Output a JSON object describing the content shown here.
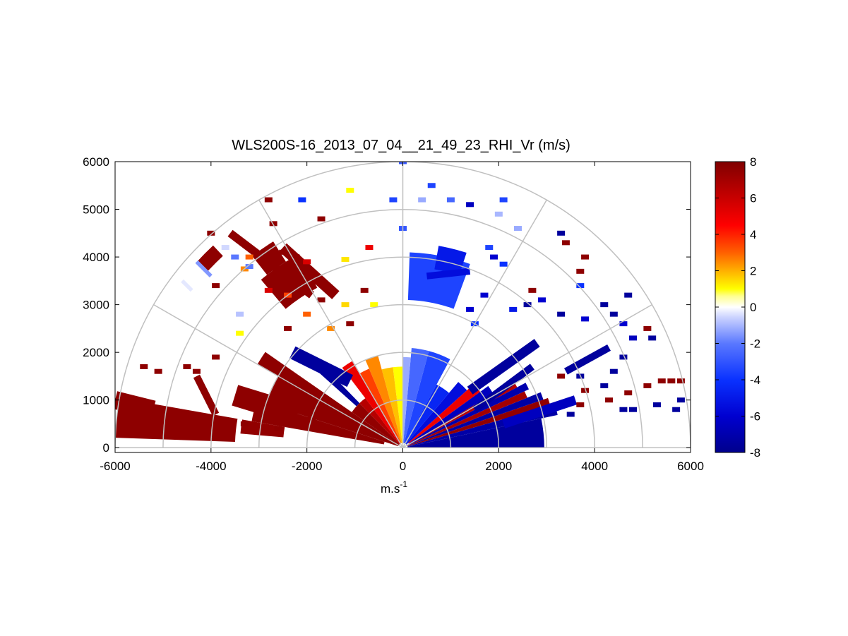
{
  "chart_data": {
    "type": "heatmap",
    "title": "WLS200S-16_2013_07_04__21_49_23_RHI_Vr (m/s)",
    "xlabel_base": "m.s",
    "xlabel_sup": "-1",
    "ylabel": "",
    "xlim": [
      -6000,
      6000
    ],
    "ylim": [
      -100,
      6000
    ],
    "x_ticks": [
      "-6000",
      "-4000",
      "-2000",
      "0",
      "2000",
      "4000",
      "6000"
    ],
    "y_ticks": [
      "0",
      "1000",
      "2000",
      "3000",
      "4000",
      "5000",
      "6000"
    ],
    "grid": true,
    "polar_grid": {
      "range_rings": [
        1000,
        2000,
        3000,
        4000,
        5000,
        6000
      ],
      "spokes_deg": [
        0,
        30,
        60,
        90,
        120,
        150,
        180
      ]
    },
    "colorbar": {
      "min": -8,
      "max": 8,
      "ticks": [
        "8",
        "6",
        "4",
        "2",
        "0",
        "-2",
        "-4",
        "-6",
        "-8"
      ],
      "colormap_stops": [
        {
          "v": -8,
          "color": "#00008c"
        },
        {
          "v": -6,
          "color": "#0000d0"
        },
        {
          "v": -4,
          "color": "#0a32ff"
        },
        {
          "v": -2,
          "color": "#5a78ff"
        },
        {
          "v": -0.6,
          "color": "#c8d0ff"
        },
        {
          "v": 0,
          "color": "#ffffff"
        },
        {
          "v": 0.6,
          "color": "#ffff90"
        },
        {
          "v": 1,
          "color": "#ffff00"
        },
        {
          "v": 2,
          "color": "#ffb000"
        },
        {
          "v": 3,
          "color": "#ff6000"
        },
        {
          "v": 4.5,
          "color": "#ff0000"
        },
        {
          "v": 6,
          "color": "#c80000"
        },
        {
          "v": 8,
          "color": "#800000"
        }
      ]
    },
    "sectors": [
      {
        "ang0": 0,
        "ang1": 12,
        "r0": 100,
        "r1": 2950,
        "v": -7.5
      },
      {
        "ang0": 12,
        "ang1": 16,
        "r0": 100,
        "r1": 3300,
        "v": -7.2
      },
      {
        "ang0": 16,
        "ang1": 19,
        "r0": 100,
        "r1": 3200,
        "v": 7.5
      },
      {
        "ang0": 19,
        "ang1": 22,
        "r0": 100,
        "r1": 3100,
        "v": -7.3
      },
      {
        "ang0": 22,
        "ang1": 25,
        "r0": 100,
        "r1": 2800,
        "v": 7.0
      },
      {
        "ang0": 25,
        "ang1": 28,
        "r0": 100,
        "r1": 2900,
        "v": -7.0
      },
      {
        "ang0": 28,
        "ang1": 31,
        "r0": 150,
        "r1": 2700,
        "v": 6.5
      },
      {
        "ang0": 31,
        "ang1": 36,
        "r0": 150,
        "r1": 2200,
        "v": -6.5
      },
      {
        "ang0": 36,
        "ang1": 42,
        "r0": 150,
        "r1": 2000,
        "v": 5.0
      },
      {
        "ang0": 42,
        "ang1": 50,
        "r0": 100,
        "r1": 1800,
        "v": -5.5
      },
      {
        "ang0": 50,
        "ang1": 62,
        "r0": 100,
        "r1": 1500,
        "v": -4.5
      },
      {
        "ang0": 62,
        "ang1": 75,
        "r0": 100,
        "r1": 2100,
        "v": -3.5
      },
      {
        "ang0": 75,
        "ang1": 85,
        "r0": 100,
        "r1": 2100,
        "v": -2.5
      },
      {
        "ang0": 85,
        "ang1": 90,
        "r0": 100,
        "r1": 1900,
        "v": -1.2
      },
      {
        "ang0": 90,
        "ang1": 97,
        "r0": 100,
        "r1": 1700,
        "v": 1.0
      },
      {
        "ang0": 97,
        "ang1": 105,
        "r0": 100,
        "r1": 1700,
        "v": 1.8
      },
      {
        "ang0": 105,
        "ang1": 113,
        "r0": 100,
        "r1": 2000,
        "v": 2.5
      },
      {
        "ang0": 113,
        "ang1": 120,
        "r0": 100,
        "r1": 1800,
        "v": 3.5
      },
      {
        "ang0": 120,
        "ang1": 127,
        "r0": 100,
        "r1": 2100,
        "v": 5.0
      },
      {
        "ang0": 127,
        "ang1": 134,
        "r0": 100,
        "r1": 1300,
        "v": 6.5
      },
      {
        "ang0": 134,
        "ang1": 138,
        "r0": 1300,
        "r1": 2600,
        "v": -7.5
      },
      {
        "ang0": 134,
        "ang1": 145,
        "r0": 100,
        "r1": 1300,
        "v": 7.5
      },
      {
        "ang0": 145,
        "ang1": 150,
        "r0": 100,
        "r1": 3500,
        "v": 7.6
      },
      {
        "ang0": 150,
        "ang1": 162,
        "r0": 100,
        "r1": 3000,
        "v": 7.6
      },
      {
        "ang0": 162,
        "ang1": 170,
        "r0": 400,
        "r1": 3200,
        "v": 7.6
      },
      {
        "ang0": 170,
        "ang1": 178,
        "r0": 3500,
        "r1": 6000,
        "v": 7.6
      },
      {
        "ang0": 170,
        "ang1": 175,
        "r0": 2500,
        "r1": 3400,
        "v": 7.5
      },
      {
        "ang0": 118,
        "ang1": 130,
        "r0": 3800,
        "r1": 4600,
        "v": 7.6
      },
      {
        "ang0": 122,
        "ang1": 128,
        "r0": 4600,
        "r1": 5100,
        "v": 7.6
      },
      {
        "ang0": 133,
        "ang1": 138,
        "r0": 5500,
        "r1": 5800,
        "v": 7.6
      },
      {
        "ang0": 70,
        "ang1": 88,
        "r0": 3100,
        "r1": 4100,
        "v": -3.5
      },
      {
        "ang0": 72,
        "ang1": 80,
        "r0": 3800,
        "r1": 4300,
        "v": -5.0
      }
    ],
    "blocks": [
      {
        "x": -3300,
        "y": 3750,
        "v": 2.5
      },
      {
        "x": -3200,
        "y": 4000,
        "v": 3.0
      },
      {
        "x": -2400,
        "y": 3200,
        "v": 3.5
      },
      {
        "x": -2000,
        "y": 2800,
        "v": 3.0
      },
      {
        "x": -1500,
        "y": 2500,
        "v": 2.5
      },
      {
        "x": -1100,
        "y": 5400,
        "v": 1.0
      },
      {
        "x": -1200,
        "y": 3000,
        "v": 1.5
      },
      {
        "x": -3400,
        "y": 2400,
        "v": 1.0
      },
      {
        "x": -600,
        "y": 3000,
        "v": 1.0
      },
      {
        "x": -1200,
        "y": 3950,
        "v": 1.3
      },
      {
        "x": -700,
        "y": 4200,
        "v": 5.0
      },
      {
        "x": -2800,
        "y": 3300,
        "v": 5.5
      },
      {
        "x": -2000,
        "y": 3900,
        "v": 5.5
      },
      {
        "x": -4500,
        "y": 1700,
        "v": 7.6
      },
      {
        "x": -4300,
        "y": 1600,
        "v": 7.6
      },
      {
        "x": -3900,
        "y": 1900,
        "v": 7.6
      },
      {
        "x": -2400,
        "y": 2500,
        "v": 7.6
      },
      {
        "x": -2000,
        "y": 3300,
        "v": 7.6
      },
      {
        "x": -1700,
        "y": 3100,
        "v": 7.6
      },
      {
        "x": -1100,
        "y": 2600,
        "v": 7.6
      },
      {
        "x": -800,
        "y": 3300,
        "v": 7.6
      },
      {
        "x": -1700,
        "y": 4800,
        "v": 7.6
      },
      {
        "x": -2800,
        "y": 5200,
        "v": 7.6
      },
      {
        "x": -3700,
        "y": 4200,
        "v": -0.5
      },
      {
        "x": -3500,
        "y": 4000,
        "v": -2.0
      },
      {
        "x": -3200,
        "y": 3800,
        "v": -2.0
      },
      {
        "x": -3400,
        "y": 2800,
        "v": -0.8
      },
      {
        "x": -2100,
        "y": 5200,
        "v": -4.0
      },
      {
        "x": -200,
        "y": 5200,
        "v": -3.5
      },
      {
        "x": 400,
        "y": 5200,
        "v": -1.2
      },
      {
        "x": 600,
        "y": 5500,
        "v": -3.5
      },
      {
        "x": 1000,
        "y": 5200,
        "v": -2.5
      },
      {
        "x": 1400,
        "y": 5100,
        "v": -6.5
      },
      {
        "x": 2100,
        "y": 5200,
        "v": -3.5
      },
      {
        "x": 2000,
        "y": 4900,
        "v": -1.0
      },
      {
        "x": 2400,
        "y": 4600,
        "v": -1.2
      },
      {
        "x": 1800,
        "y": 4200,
        "v": -3.5
      },
      {
        "x": 1900,
        "y": 4000,
        "v": -6.0
      },
      {
        "x": 2100,
        "y": 3850,
        "v": -4.0
      },
      {
        "x": 0,
        "y": 4600,
        "v": -3.0
      },
      {
        "x": 0,
        "y": 6000,
        "v": -3.0
      },
      {
        "x": 1400,
        "y": 2900,
        "v": -6.0
      },
      {
        "x": 1500,
        "y": 2600,
        "v": -4.0
      },
      {
        "x": 1700,
        "y": 3200,
        "v": -6.0
      },
      {
        "x": 2300,
        "y": 2900,
        "v": -5.0
      },
      {
        "x": 2600,
        "y": 3000,
        "v": -7.5
      },
      {
        "x": 2700,
        "y": 3300,
        "v": 7.6
      },
      {
        "x": 2900,
        "y": 3100,
        "v": -6.0
      },
      {
        "x": 3300,
        "y": 2800,
        "v": -7.5
      },
      {
        "x": 3400,
        "y": 4300,
        "v": 7.6
      },
      {
        "x": 3800,
        "y": 4000,
        "v": 7.6
      },
      {
        "x": 3700,
        "y": 3700,
        "v": 7.6
      },
      {
        "x": 3300,
        "y": 4500,
        "v": -7.5
      },
      {
        "x": 3700,
        "y": 3400,
        "v": -4.0
      },
      {
        "x": 3800,
        "y": 2700,
        "v": -6.0
      },
      {
        "x": 4200,
        "y": 3000,
        "v": -7.5
      },
      {
        "x": 4400,
        "y": 2800,
        "v": -7.5
      },
      {
        "x": 4700,
        "y": 3200,
        "v": -7.5
      },
      {
        "x": 4600,
        "y": 2600,
        "v": -6.0
      },
      {
        "x": 5100,
        "y": 2500,
        "v": 7.6
      },
      {
        "x": 5200,
        "y": 2300,
        "v": -7.5
      },
      {
        "x": 4800,
        "y": 2300,
        "v": -6.5
      },
      {
        "x": 3700,
        "y": 1500,
        "v": -7.5
      },
      {
        "x": 3300,
        "y": 1500,
        "v": 7.6
      },
      {
        "x": 3800,
        "y": 1200,
        "v": 7.6
      },
      {
        "x": 4200,
        "y": 1300,
        "v": -7.5
      },
      {
        "x": 4600,
        "y": 1900,
        "v": -7.5
      },
      {
        "x": 4400,
        "y": 1600,
        "v": -7.5
      },
      {
        "x": 4300,
        "y": 1000,
        "v": 7.6
      },
      {
        "x": 4700,
        "y": 1150,
        "v": 7.6
      },
      {
        "x": 5100,
        "y": 1300,
        "v": 7.6
      },
      {
        "x": 5400,
        "y": 1400,
        "v": 7.6
      },
      {
        "x": 5600,
        "y": 1400,
        "v": 7.6
      },
      {
        "x": 5800,
        "y": 1400,
        "v": 7.6
      },
      {
        "x": 4600,
        "y": 800,
        "v": -7.5
      },
      {
        "x": 4800,
        "y": 800,
        "v": -7.5
      },
      {
        "x": 5300,
        "y": 900,
        "v": -7.5
      },
      {
        "x": 5800,
        "y": 1000,
        "v": -7.5
      },
      {
        "x": 5700,
        "y": 800,
        "v": -7.5
      },
      {
        "x": 3700,
        "y": 900,
        "v": 7.6
      },
      {
        "x": 3500,
        "y": 700,
        "v": -7.5
      },
      {
        "x": -5400,
        "y": 1700,
        "v": 7.6
      },
      {
        "x": -5100,
        "y": 1600,
        "v": 7.6
      },
      {
        "x": -4600,
        "y": 700,
        "v": 7.6
      },
      {
        "x": -4000,
        "y": 600,
        "v": 7.6
      },
      {
        "x": -3300,
        "y": 500,
        "v": 7.6
      },
      {
        "x": -2900,
        "y": 800,
        "v": 7.6
      },
      {
        "x": -2600,
        "y": 400,
        "v": 7.6
      },
      {
        "x": -1900,
        "y": 600,
        "v": 7.6
      },
      {
        "x": -3900,
        "y": 3400,
        "v": 7.6
      },
      {
        "x": -2500,
        "y": 4100,
        "v": 7.6
      },
      {
        "x": -4000,
        "y": 4500,
        "v": 7.6
      },
      {
        "x": -2700,
        "y": 4700,
        "v": 7.6
      }
    ],
    "streaks": [
      {
        "x0": -3600,
        "y0": 4500,
        "x1": -1900,
        "y1": 3200,
        "w": 170,
        "v": 7.6
      },
      {
        "x0": -2500,
        "y0": 4200,
        "x1": -1400,
        "y1": 3200,
        "w": 230,
        "v": 7.6
      },
      {
        "x0": -4300,
        "y0": 3900,
        "x1": -4000,
        "y1": 3600,
        "w": 80,
        "v": -1.5
      },
      {
        "x0": -4600,
        "y0": 3500,
        "x1": -4400,
        "y1": 3300,
        "w": 80,
        "v": -0.3
      },
      {
        "x0": -6000,
        "y0": 1000,
        "x1": -5200,
        "y1": 800,
        "w": 380,
        "v": 7.6
      },
      {
        "x0": -5200,
        "y0": 800,
        "x1": -4200,
        "y1": 600,
        "w": 150,
        "v": 7.6
      },
      {
        "x0": -4300,
        "y0": 1500,
        "x1": -3900,
        "y1": 700,
        "w": 150,
        "v": 7.6
      },
      {
        "x0": -3500,
        "y0": 1100,
        "x1": -2200,
        "y1": 700,
        "w": 450,
        "v": 7.6
      },
      {
        "x0": 2800,
        "y0": 2200,
        "x1": 1400,
        "y1": 1200,
        "w": 200,
        "v": -7.5
      },
      {
        "x0": 2700,
        "y0": 1700,
        "x1": 1500,
        "y1": 800,
        "w": 150,
        "v": -7.5
      },
      {
        "x0": 3600,
        "y0": 1000,
        "x1": 2100,
        "y1": 500,
        "w": 200,
        "v": -6.5
      },
      {
        "x0": 4300,
        "y0": 2100,
        "x1": 3400,
        "y1": 1600,
        "w": 150,
        "v": -7.5
      },
      {
        "x0": -2300,
        "y0": 2000,
        "x1": -1100,
        "y1": 1400,
        "w": 280,
        "v": -7.5
      },
      {
        "x0": 500,
        "y0": 3600,
        "x1": 1400,
        "y1": 3700,
        "w": 140,
        "v": -5.5
      }
    ]
  }
}
